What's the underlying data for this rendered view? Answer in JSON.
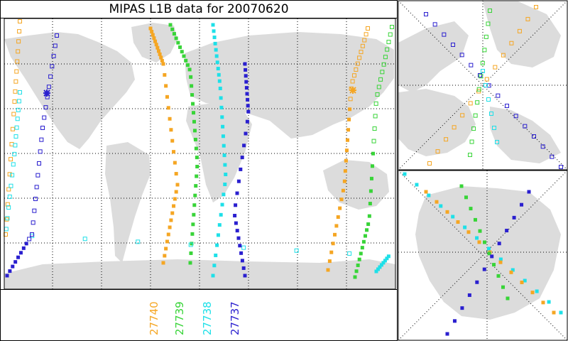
{
  "title": "MIPAS L1B data for 20070620",
  "orbits": [
    {
      "id": "27740",
      "color": "#f5a623"
    },
    {
      "id": "27739",
      "color": "#38d438"
    },
    {
      "id": "27738",
      "color": "#1ee0e8"
    },
    {
      "id": "27737",
      "color": "#2a1fcf"
    }
  ],
  "panels": [
    "global-map",
    "north-polar-map",
    "south-polar-map"
  ],
  "colors": {
    "land": "#dcdcdc",
    "border": "#000000",
    "grid": "#000000"
  }
}
